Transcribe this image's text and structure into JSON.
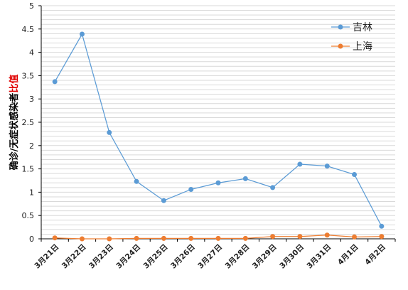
{
  "chart_data": {
    "type": "line",
    "title": "",
    "xlabel": "",
    "ylabel": "确诊/无症状感染者",
    "ylabel_highlight": "比值",
    "ylim": [
      0,
      5
    ],
    "yticks": [
      "0",
      "0.5",
      "1",
      "1.5",
      "2",
      "2.5",
      "3",
      "3.5",
      "4",
      "4.5",
      "5"
    ],
    "grid": true,
    "legend_position": "top-right",
    "categories": [
      "3月21日",
      "3月22日",
      "3月23日",
      "3月24日",
      "3月25日",
      "3月26日",
      "3月27日",
      "3月28日",
      "3月29日",
      "3月30日",
      "3月31日",
      "4月1日",
      "4月2日"
    ],
    "series": [
      {
        "name": "吉林",
        "color": "#5b9bd5",
        "values": [
          3.37,
          4.39,
          2.28,
          1.23,
          0.82,
          1.06,
          1.2,
          1.29,
          1.1,
          1.6,
          1.56,
          1.38,
          0.27
        ]
      },
      {
        "name": "上海",
        "color": "#ed7d31",
        "values": [
          0.02,
          0.0,
          0.0,
          0.01,
          0.01,
          0.01,
          0.01,
          0.01,
          0.05,
          0.05,
          0.08,
          0.04,
          0.05
        ]
      }
    ],
    "colors": {
      "gridline": "#d9d9d9",
      "axis": "#000000",
      "ylabel": "#000000",
      "ylabel_highlight": "#e00000"
    }
  }
}
